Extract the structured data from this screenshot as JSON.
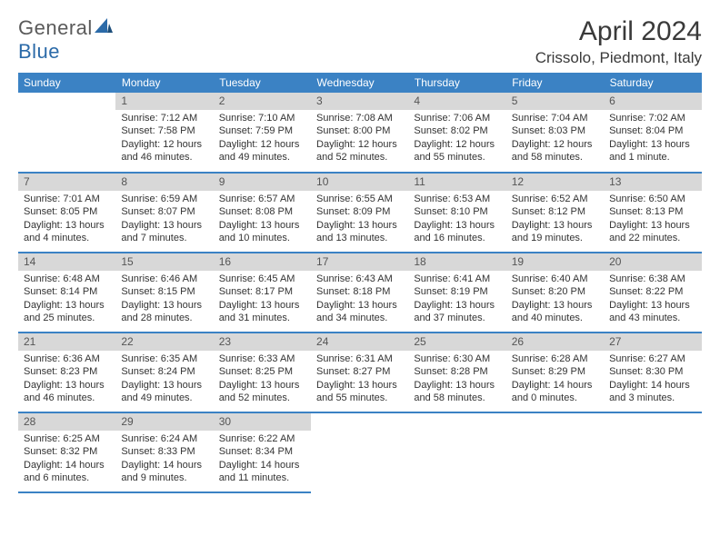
{
  "brand": {
    "part1": "General",
    "part2": "Blue"
  },
  "title": "April 2024",
  "location": "Crissolo, Piedmont, Italy",
  "colors": {
    "header_bg": "#3b82c4",
    "header_text": "#ffffff",
    "daynum_bg": "#d8d8d8",
    "border": "#3b82c4",
    "logo_accent": "#2b6aa8"
  },
  "weekdays": [
    "Sunday",
    "Monday",
    "Tuesday",
    "Wednesday",
    "Thursday",
    "Friday",
    "Saturday"
  ],
  "weeks": [
    [
      null,
      {
        "n": "1",
        "sr": "Sunrise: 7:12 AM",
        "ss": "Sunset: 7:58 PM",
        "d1": "Daylight: 12 hours",
        "d2": "and 46 minutes."
      },
      {
        "n": "2",
        "sr": "Sunrise: 7:10 AM",
        "ss": "Sunset: 7:59 PM",
        "d1": "Daylight: 12 hours",
        "d2": "and 49 minutes."
      },
      {
        "n": "3",
        "sr": "Sunrise: 7:08 AM",
        "ss": "Sunset: 8:00 PM",
        "d1": "Daylight: 12 hours",
        "d2": "and 52 minutes."
      },
      {
        "n": "4",
        "sr": "Sunrise: 7:06 AM",
        "ss": "Sunset: 8:02 PM",
        "d1": "Daylight: 12 hours",
        "d2": "and 55 minutes."
      },
      {
        "n": "5",
        "sr": "Sunrise: 7:04 AM",
        "ss": "Sunset: 8:03 PM",
        "d1": "Daylight: 12 hours",
        "d2": "and 58 minutes."
      },
      {
        "n": "6",
        "sr": "Sunrise: 7:02 AM",
        "ss": "Sunset: 8:04 PM",
        "d1": "Daylight: 13 hours",
        "d2": "and 1 minute."
      }
    ],
    [
      {
        "n": "7",
        "sr": "Sunrise: 7:01 AM",
        "ss": "Sunset: 8:05 PM",
        "d1": "Daylight: 13 hours",
        "d2": "and 4 minutes."
      },
      {
        "n": "8",
        "sr": "Sunrise: 6:59 AM",
        "ss": "Sunset: 8:07 PM",
        "d1": "Daylight: 13 hours",
        "d2": "and 7 minutes."
      },
      {
        "n": "9",
        "sr": "Sunrise: 6:57 AM",
        "ss": "Sunset: 8:08 PM",
        "d1": "Daylight: 13 hours",
        "d2": "and 10 minutes."
      },
      {
        "n": "10",
        "sr": "Sunrise: 6:55 AM",
        "ss": "Sunset: 8:09 PM",
        "d1": "Daylight: 13 hours",
        "d2": "and 13 minutes."
      },
      {
        "n": "11",
        "sr": "Sunrise: 6:53 AM",
        "ss": "Sunset: 8:10 PM",
        "d1": "Daylight: 13 hours",
        "d2": "and 16 minutes."
      },
      {
        "n": "12",
        "sr": "Sunrise: 6:52 AM",
        "ss": "Sunset: 8:12 PM",
        "d1": "Daylight: 13 hours",
        "d2": "and 19 minutes."
      },
      {
        "n": "13",
        "sr": "Sunrise: 6:50 AM",
        "ss": "Sunset: 8:13 PM",
        "d1": "Daylight: 13 hours",
        "d2": "and 22 minutes."
      }
    ],
    [
      {
        "n": "14",
        "sr": "Sunrise: 6:48 AM",
        "ss": "Sunset: 8:14 PM",
        "d1": "Daylight: 13 hours",
        "d2": "and 25 minutes."
      },
      {
        "n": "15",
        "sr": "Sunrise: 6:46 AM",
        "ss": "Sunset: 8:15 PM",
        "d1": "Daylight: 13 hours",
        "d2": "and 28 minutes."
      },
      {
        "n": "16",
        "sr": "Sunrise: 6:45 AM",
        "ss": "Sunset: 8:17 PM",
        "d1": "Daylight: 13 hours",
        "d2": "and 31 minutes."
      },
      {
        "n": "17",
        "sr": "Sunrise: 6:43 AM",
        "ss": "Sunset: 8:18 PM",
        "d1": "Daylight: 13 hours",
        "d2": "and 34 minutes."
      },
      {
        "n": "18",
        "sr": "Sunrise: 6:41 AM",
        "ss": "Sunset: 8:19 PM",
        "d1": "Daylight: 13 hours",
        "d2": "and 37 minutes."
      },
      {
        "n": "19",
        "sr": "Sunrise: 6:40 AM",
        "ss": "Sunset: 8:20 PM",
        "d1": "Daylight: 13 hours",
        "d2": "and 40 minutes."
      },
      {
        "n": "20",
        "sr": "Sunrise: 6:38 AM",
        "ss": "Sunset: 8:22 PM",
        "d1": "Daylight: 13 hours",
        "d2": "and 43 minutes."
      }
    ],
    [
      {
        "n": "21",
        "sr": "Sunrise: 6:36 AM",
        "ss": "Sunset: 8:23 PM",
        "d1": "Daylight: 13 hours",
        "d2": "and 46 minutes."
      },
      {
        "n": "22",
        "sr": "Sunrise: 6:35 AM",
        "ss": "Sunset: 8:24 PM",
        "d1": "Daylight: 13 hours",
        "d2": "and 49 minutes."
      },
      {
        "n": "23",
        "sr": "Sunrise: 6:33 AM",
        "ss": "Sunset: 8:25 PM",
        "d1": "Daylight: 13 hours",
        "d2": "and 52 minutes."
      },
      {
        "n": "24",
        "sr": "Sunrise: 6:31 AM",
        "ss": "Sunset: 8:27 PM",
        "d1": "Daylight: 13 hours",
        "d2": "and 55 minutes."
      },
      {
        "n": "25",
        "sr": "Sunrise: 6:30 AM",
        "ss": "Sunset: 8:28 PM",
        "d1": "Daylight: 13 hours",
        "d2": "and 58 minutes."
      },
      {
        "n": "26",
        "sr": "Sunrise: 6:28 AM",
        "ss": "Sunset: 8:29 PM",
        "d1": "Daylight: 14 hours",
        "d2": "and 0 minutes."
      },
      {
        "n": "27",
        "sr": "Sunrise: 6:27 AM",
        "ss": "Sunset: 8:30 PM",
        "d1": "Daylight: 14 hours",
        "d2": "and 3 minutes."
      }
    ],
    [
      {
        "n": "28",
        "sr": "Sunrise: 6:25 AM",
        "ss": "Sunset: 8:32 PM",
        "d1": "Daylight: 14 hours",
        "d2": "and 6 minutes."
      },
      {
        "n": "29",
        "sr": "Sunrise: 6:24 AM",
        "ss": "Sunset: 8:33 PM",
        "d1": "Daylight: 14 hours",
        "d2": "and 9 minutes."
      },
      {
        "n": "30",
        "sr": "Sunrise: 6:22 AM",
        "ss": "Sunset: 8:34 PM",
        "d1": "Daylight: 14 hours",
        "d2": "and 11 minutes."
      },
      null,
      null,
      null,
      null
    ]
  ]
}
